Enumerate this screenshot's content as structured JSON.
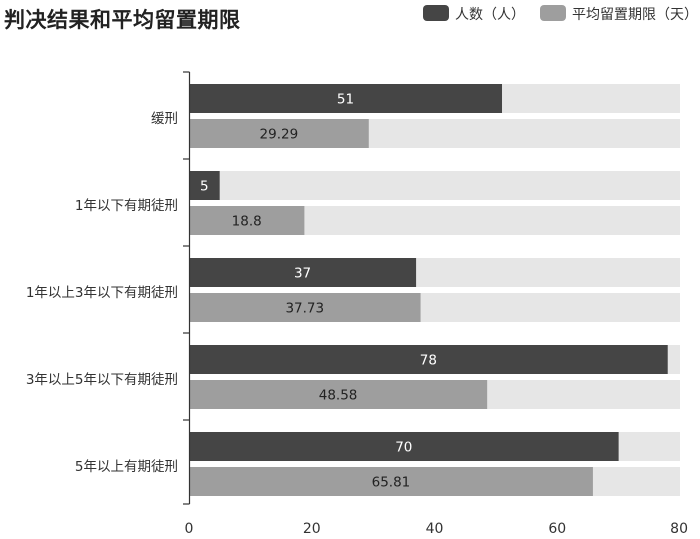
{
  "chart_data": {
    "type": "bar",
    "orientation": "horizontal",
    "title": "判决结果和平均留置期限",
    "categories": [
      "缓刑",
      "1年以下有期徒刑",
      "1年以上3年以下有期徒刑",
      "3年以上5年以下有期徒刑",
      "5年以上有期徒刑"
    ],
    "series": [
      {
        "name": "人数（人）",
        "values": [
          51,
          5,
          37,
          78,
          70
        ],
        "color": "#454545"
      },
      {
        "name": "平均留置期限（天）",
        "values": [
          29.29,
          18.8,
          37.73,
          48.58,
          65.81
        ],
        "color": "#9e9e9e"
      }
    ],
    "xlim": [
      0,
      80
    ],
    "xticks": [
      "0",
      "20",
      "40",
      "60",
      "80"
    ],
    "background_bar_color": "#e6e6e6",
    "legend_position": "top-right",
    "grid": false
  }
}
